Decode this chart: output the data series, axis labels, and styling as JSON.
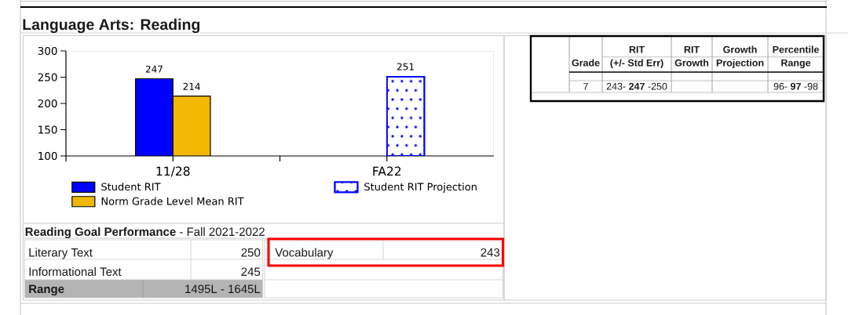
{
  "chart_data": {
    "type": "bar",
    "title": "Language Arts: Reading",
    "categories": [
      null,
      "11/28",
      null,
      "FA22"
    ],
    "series": [
      {
        "name": "Student RIT",
        "color": "#0000ff",
        "values": [
          null,
          247,
          null,
          null
        ]
      },
      {
        "name": "Norm Grade Level Mean RIT",
        "color": "#f0b800",
        "values": [
          null,
          214,
          null,
          null
        ]
      },
      {
        "name": "Student RIT Projection",
        "color": "#0000ff",
        "values": [
          null,
          null,
          null,
          251
        ]
      }
    ],
    "ylim": [
      100,
      300
    ],
    "yticks": [
      100,
      150,
      200,
      250,
      300
    ],
    "data_labels": true,
    "legend": "bottom",
    "annotations": [
      "Grade",
      "RIT",
      "(+/- Std Err)",
      "RIT",
      "Growth",
      "Growth",
      "Projection",
      "Percentile",
      "Range",
      "7",
      "243- **247** -250",
      "96- **97** -98",
      "**Reading Goal Performance** - Fall 2021-2022",
      "Literary Text",
      "250",
      "Informational Text",
      "245",
      "Vocabulary",
      "243",
      "Range",
      "1495L - 1645L"
    ]
  }
}
